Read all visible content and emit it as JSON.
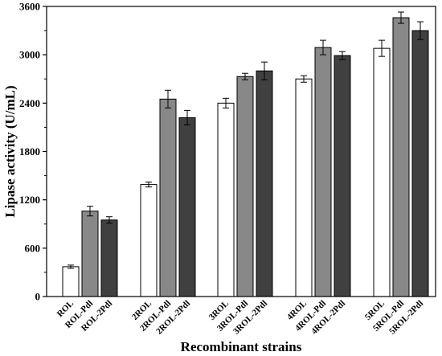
{
  "chart_data": {
    "type": "bar",
    "xlabel": "Recombinant strains",
    "ylabel": "Lipase activity (U/mL)",
    "ylim": [
      0,
      3600
    ],
    "yticks": [
      "0",
      "600",
      "1200",
      "1800",
      "2400",
      "3000",
      "3600"
    ],
    "groups": [
      {
        "bars": [
          {
            "label": "ROL",
            "value": 370,
            "error": 20,
            "color": "#ffffff"
          },
          {
            "label": "ROL-Pdl",
            "value": 1060,
            "error": 60,
            "color": "#888888"
          },
          {
            "label": "ROL-2Pdl",
            "value": 950,
            "error": 40,
            "color": "#404040"
          }
        ]
      },
      {
        "bars": [
          {
            "label": "2ROL",
            "value": 1390,
            "error": 30,
            "color": "#ffffff"
          },
          {
            "label": "2ROL-Pdl",
            "value": 2450,
            "error": 110,
            "color": "#888888"
          },
          {
            "label": "2ROL-2Pdl",
            "value": 2220,
            "error": 90,
            "color": "#404040"
          }
        ]
      },
      {
        "bars": [
          {
            "label": "3ROL",
            "value": 2400,
            "error": 60,
            "color": "#ffffff"
          },
          {
            "label": "3ROL-Pdl",
            "value": 2730,
            "error": 40,
            "color": "#888888"
          },
          {
            "label": "3ROL-2Pdl",
            "value": 2800,
            "error": 110,
            "color": "#404040"
          }
        ]
      },
      {
        "bars": [
          {
            "label": "4ROL",
            "value": 2700,
            "error": 40,
            "color": "#ffffff"
          },
          {
            "label": "4ROL-Pdl",
            "value": 3090,
            "error": 90,
            "color": "#888888"
          },
          {
            "label": "4ROL-2Pdl",
            "value": 2990,
            "error": 50,
            "color": "#404040"
          }
        ]
      },
      {
        "bars": [
          {
            "label": "5ROL",
            "value": 3080,
            "error": 100,
            "color": "#ffffff"
          },
          {
            "label": "5ROL-Pdl",
            "value": 3460,
            "error": 70,
            "color": "#888888"
          },
          {
            "label": "5ROL-2Pdl",
            "value": 3300,
            "error": 110,
            "color": "#404040"
          }
        ]
      }
    ]
  }
}
